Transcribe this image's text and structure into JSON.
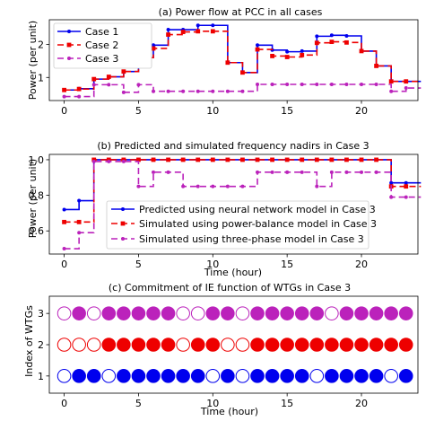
{
  "chart_data": [
    {
      "type": "line",
      "title": "(a) Power flow at PCC in all cases",
      "xlabel": "",
      "ylabel": "Power (per unit)",
      "xlim": [
        -1,
        23.8
      ],
      "ylim": [
        0.3,
        2.75
      ],
      "xticks": [
        0,
        5,
        10,
        15,
        20
      ],
      "yticks": [
        1,
        2
      ],
      "legend_position": "top-left",
      "series": [
        {
          "name": "Case 1",
          "color": "#0000ee",
          "dash": "",
          "marker": "dot",
          "x": [
            0,
            1,
            2,
            3,
            4,
            5,
            6,
            7,
            8,
            9,
            10,
            11,
            12,
            13,
            14,
            15,
            16,
            17,
            18,
            19,
            20,
            21,
            22,
            23
          ],
          "y": [
            0.62,
            0.66,
            0.95,
            1.02,
            1.18,
            1.6,
            1.98,
            2.45,
            2.45,
            2.58,
            2.58,
            1.45,
            1.15,
            1.98,
            1.83,
            1.78,
            1.8,
            2.25,
            2.28,
            2.26,
            1.8,
            1.35,
            0.88,
            0.88
          ]
        },
        {
          "name": "Case 2",
          "color": "#ee0000",
          "dash": "7,4",
          "marker": "square",
          "x": [
            0,
            1,
            2,
            3,
            4,
            5,
            6,
            7,
            8,
            9,
            10,
            11,
            12,
            13,
            14,
            15,
            16,
            17,
            18,
            19,
            20,
            21,
            22,
            23
          ],
          "y": [
            0.62,
            0.65,
            0.95,
            1.02,
            1.18,
            1.6,
            1.88,
            2.3,
            2.38,
            2.4,
            2.4,
            1.45,
            1.15,
            1.85,
            1.65,
            1.62,
            1.68,
            2.05,
            2.08,
            2.06,
            1.8,
            1.35,
            0.88,
            0.88
          ]
        },
        {
          "name": "Case 3",
          "color": "#bb22bb",
          "dash": "7,4",
          "marker": "dot",
          "x": [
            0,
            1,
            2,
            3,
            4,
            5,
            6,
            7,
            8,
            9,
            10,
            11,
            12,
            13,
            14,
            15,
            16,
            17,
            18,
            19,
            20,
            21,
            22,
            23
          ],
          "y": [
            0.42,
            0.42,
            0.78,
            0.78,
            0.55,
            0.78,
            0.58,
            0.58,
            0.58,
            0.58,
            0.58,
            0.58,
            0.58,
            0.79,
            0.79,
            0.79,
            0.79,
            0.79,
            0.79,
            0.79,
            0.79,
            0.79,
            0.58,
            0.68
          ]
        }
      ]
    },
    {
      "type": "line",
      "title": "(b) Predicted and simulated frequency nadirs in Case 3",
      "xlabel": "Time (hour)",
      "ylabel": "Power (per unit)",
      "xlim": [
        -1,
        23.8
      ],
      "ylim": [
        0.47,
        1.03
      ],
      "xticks": [
        0,
        5,
        10,
        15,
        20
      ],
      "yticks": [
        0.6,
        0.8,
        1.0
      ],
      "legend_position": "bottom-center",
      "series": [
        {
          "name": "Predicted using neural network model in Case 3",
          "color": "#0000ee",
          "dash": "",
          "marker": "dot",
          "x": [
            0,
            1,
            2,
            3,
            4,
            5,
            6,
            7,
            8,
            9,
            10,
            11,
            12,
            13,
            14,
            15,
            16,
            17,
            18,
            19,
            20,
            21,
            22,
            23
          ],
          "y": [
            0.72,
            0.77,
            1.0,
            1.0,
            1.0,
            1.0,
            1.0,
            1.0,
            1.0,
            1.0,
            1.0,
            1.0,
            1.0,
            1.0,
            1.0,
            1.0,
            1.0,
            1.0,
            1.0,
            1.0,
            1.0,
            1.0,
            0.87,
            0.87
          ]
        },
        {
          "name": "Simulated using power-balance model in Case 3",
          "color": "#ee0000",
          "dash": "7,4",
          "marker": "square",
          "x": [
            0,
            1,
            2,
            3,
            4,
            5,
            6,
            7,
            8,
            9,
            10,
            11,
            12,
            13,
            14,
            15,
            16,
            17,
            18,
            19,
            20,
            21,
            22,
            23
          ],
          "y": [
            0.65,
            0.65,
            1.0,
            1.0,
            1.0,
            1.0,
            1.0,
            1.0,
            1.0,
            1.0,
            1.0,
            1.0,
            1.0,
            1.0,
            1.0,
            1.0,
            1.0,
            1.0,
            1.0,
            1.0,
            1.0,
            1.0,
            0.85,
            0.85
          ]
        },
        {
          "name": "Simulated using three-phase model in Case 3",
          "color": "#bb22bb",
          "dash": "7,4",
          "marker": "dot",
          "x": [
            0,
            1,
            2,
            3,
            4,
            5,
            6,
            7,
            8,
            9,
            10,
            11,
            12,
            13,
            14,
            15,
            16,
            17,
            18,
            19,
            20,
            21,
            22,
            23
          ],
          "y": [
            0.5,
            0.59,
            0.99,
            0.99,
            0.99,
            0.85,
            0.93,
            0.93,
            0.85,
            0.85,
            0.85,
            0.85,
            0.85,
            0.93,
            0.93,
            0.93,
            0.93,
            0.85,
            0.93,
            0.93,
            0.93,
            0.93,
            0.79,
            0.79
          ]
        }
      ]
    },
    {
      "type": "scatter",
      "title": "(c) Commitment of IE function of WTGs in Case 3",
      "xlabel": "Time (hour)",
      "ylabel": "Index of WTGs",
      "xlim": [
        -1,
        23.8
      ],
      "ylim": [
        0.45,
        3.55
      ],
      "xticks": [
        0,
        5,
        10,
        15,
        20
      ],
      "yticks": [
        1,
        2,
        3
      ],
      "hours": [
        0,
        1,
        2,
        3,
        4,
        5,
        6,
        7,
        8,
        9,
        10,
        11,
        12,
        13,
        14,
        15,
        16,
        17,
        18,
        19,
        20,
        21,
        22,
        23
      ],
      "rows": [
        {
          "index": 1,
          "color": "#0000ee",
          "committed": [
            0,
            1,
            1,
            0,
            1,
            1,
            1,
            1,
            1,
            1,
            0,
            1,
            0,
            1,
            1,
            1,
            1,
            0,
            1,
            1,
            1,
            1,
            0,
            1
          ]
        },
        {
          "index": 2,
          "color": "#ee0000",
          "committed": [
            0,
            0,
            0,
            1,
            1,
            1,
            1,
            1,
            0,
            1,
            1,
            0,
            0,
            1,
            1,
            1,
            1,
            1,
            1,
            1,
            1,
            1,
            1,
            1
          ]
        },
        {
          "index": 3,
          "color": "#bb22bb",
          "committed": [
            0,
            1,
            0,
            1,
            1,
            1,
            1,
            1,
            0,
            0,
            1,
            1,
            0,
            1,
            1,
            1,
            1,
            1,
            0,
            1,
            1,
            1,
            1,
            1
          ]
        }
      ]
    }
  ]
}
